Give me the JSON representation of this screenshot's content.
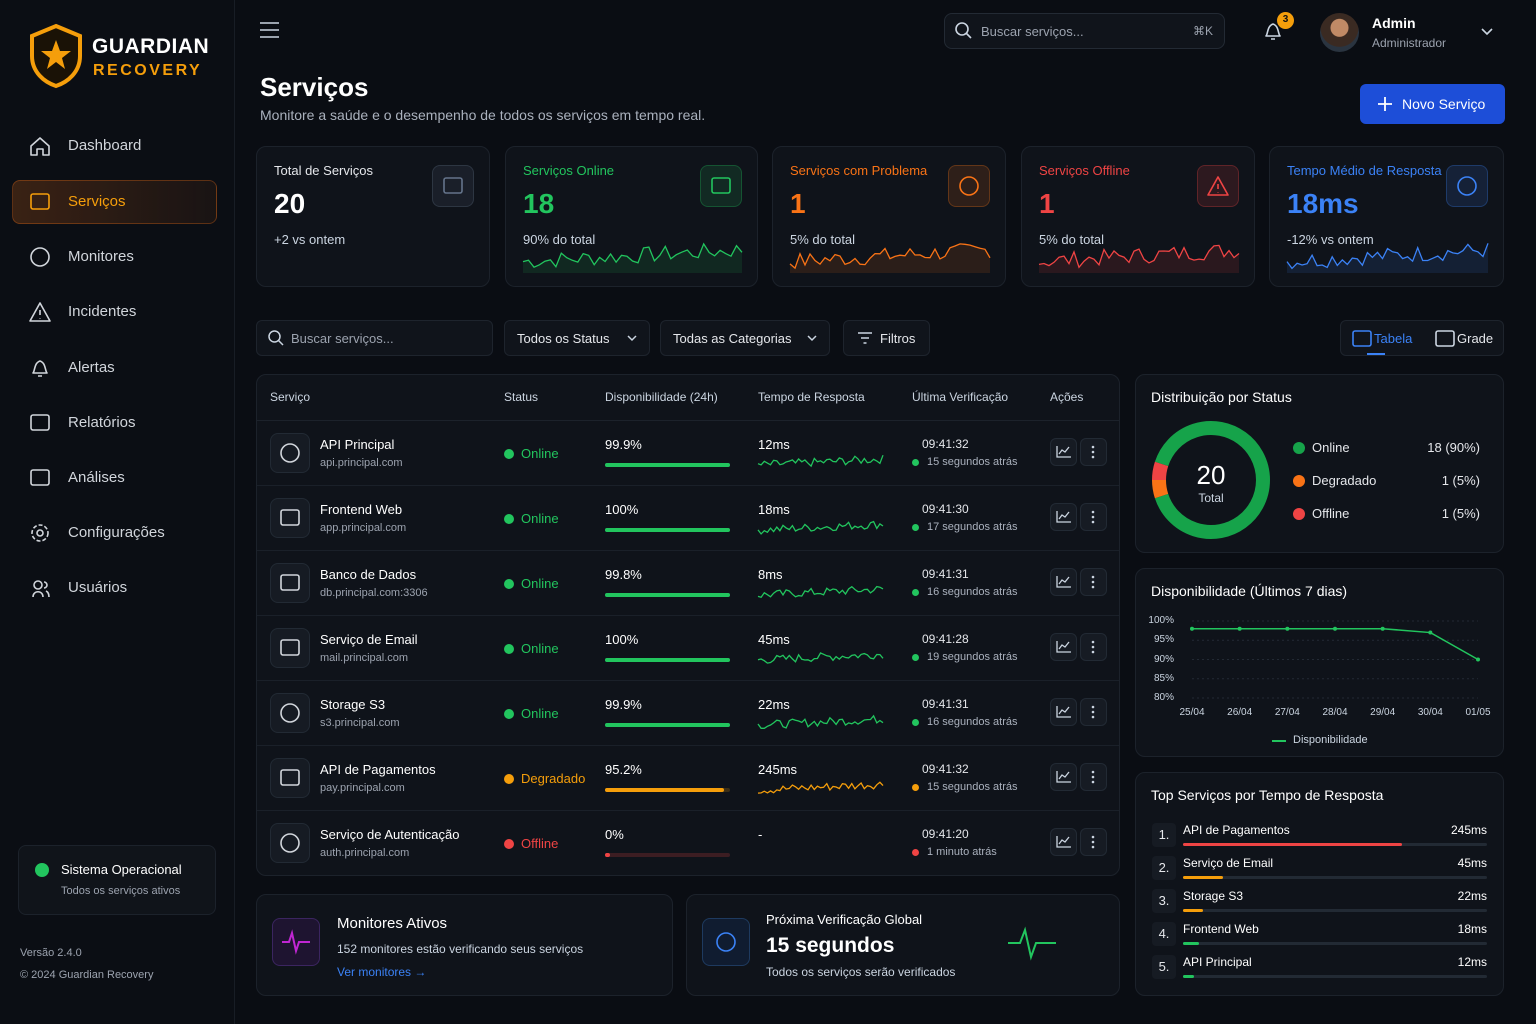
{
  "brand": {
    "line1": "GUARDIAN",
    "line2": "RECOVERY"
  },
  "nav": [
    "Dashboard",
    "Serviços",
    "Monitores",
    "Incidentes",
    "Alertas",
    "Relatórios",
    "Análises",
    "Configurações",
    "Usuários"
  ],
  "system_status": {
    "title": "Sistema Operacional",
    "subtitle": "Todos os serviços ativos"
  },
  "footer": {
    "version": "Versão 2.4.0",
    "copyright": "© 2024 Guardian Recovery"
  },
  "topbar": {
    "search_placeholder": "Buscar serviços...",
    "shortcut": "⌘K",
    "notifications": "3",
    "user_name": "Admin",
    "user_role": "Administrador"
  },
  "header": {
    "title": "Serviços",
    "subtitle": "Monitore a saúde e o desempenho de todos os serviços em tempo real.",
    "button": "Novo Serviço"
  },
  "kpis": [
    {
      "label": "Total de Serviços",
      "value": "20",
      "note": "+2 vs ontem",
      "color": "#ffffff",
      "accent": "#64748b"
    },
    {
      "label": "Serviços Online",
      "value": "18",
      "note": "90% do total",
      "color": "#22c55e",
      "accent": "#22c55e"
    },
    {
      "label": "Serviços com Problema",
      "value": "1",
      "note": "5% do total",
      "color": "#f97316",
      "accent": "#f97316"
    },
    {
      "label": "Serviços Offline",
      "value": "1",
      "note": "5% do total",
      "color": "#ef4444",
      "accent": "#ef4444"
    },
    {
      "label": "Tempo Médio de Resposta",
      "value": "18ms",
      "note": "-12% vs ontem",
      "color": "#3b82f6",
      "accent": "#3b82f6"
    }
  ],
  "filters": {
    "search_placeholder": "Buscar serviços...",
    "status": "Todos os Status",
    "category": "Todas as Categorias",
    "more": "Filtros",
    "view_table": "Tabela",
    "view_grid": "Grade"
  },
  "table": {
    "columns": [
      "Serviço",
      "Status",
      "Disponibilidade (24h)",
      "Tempo de Resposta",
      "Última Verificação",
      "Ações"
    ],
    "rows": [
      {
        "name": "API Principal",
        "host": "api.principal.com",
        "status": "Online",
        "color": "#22c55e",
        "availability": "99.9%",
        "response": "12ms",
        "time": "09:41:32",
        "ago": "15 segundos atrás"
      },
      {
        "name": "Frontend Web",
        "host": "app.principal.com",
        "status": "Online",
        "color": "#22c55e",
        "availability": "100%",
        "response": "18ms",
        "time": "09:41:30",
        "ago": "17 segundos atrás"
      },
      {
        "name": "Banco de Dados",
        "host": "db.principal.com:3306",
        "status": "Online",
        "color": "#22c55e",
        "availability": "99.8%",
        "response": "8ms",
        "time": "09:41:31",
        "ago": "16 segundos atrás"
      },
      {
        "name": "Serviço de Email",
        "host": "mail.principal.com",
        "status": "Online",
        "color": "#22c55e",
        "availability": "100%",
        "response": "45ms",
        "time": "09:41:28",
        "ago": "19 segundos atrás"
      },
      {
        "name": "Storage S3",
        "host": "s3.principal.com",
        "status": "Online",
        "color": "#22c55e",
        "availability": "99.9%",
        "response": "22ms",
        "time": "09:41:31",
        "ago": "16 segundos atrás"
      },
      {
        "name": "API de Pagamentos",
        "host": "pay.principal.com",
        "status": "Degradado",
        "color": "#f59e0b",
        "availability": "95.2%",
        "response": "245ms",
        "time": "09:41:32",
        "ago": "15 segundos atrás"
      },
      {
        "name": "Serviço de Autenticação",
        "host": "auth.principal.com",
        "status": "Offline",
        "color": "#ef4444",
        "availability": "0%",
        "response": "-",
        "time": "09:41:20",
        "ago": "1 minuto atrás"
      }
    ]
  },
  "bottom": {
    "monitors": {
      "title": "Monitores Ativos",
      "text": "152 monitores estão verificando seus serviços",
      "link": "Ver monitores →"
    },
    "next_check": {
      "title": "Próxima Verificação Global",
      "value": "15 segundos",
      "text": "Todos os serviços serão verificados"
    }
  },
  "chart_data": [
    {
      "type": "pie",
      "title": "Distribuição por Status",
      "center_value": "20",
      "center_label": "Total",
      "categories": [
        "Online",
        "Degradado",
        "Offline"
      ],
      "values": [
        18,
        1,
        1
      ],
      "value_labels": [
        "18 (90%)",
        "1 (5%)",
        "1 (5%)"
      ],
      "colors": [
        "#16a34a",
        "#f97316",
        "#ef4444"
      ]
    },
    {
      "type": "line",
      "title": "Disponibilidade (Últimos 7 dias)",
      "categories": [
        "25/04",
        "26/04",
        "27/04",
        "28/04",
        "29/04",
        "30/04",
        "01/05"
      ],
      "series": [
        {
          "name": "Disponibilidade",
          "color": "#22c55e",
          "values": [
            98,
            98,
            98,
            98,
            98,
            97,
            90
          ]
        }
      ],
      "ylim": [
        80,
        100
      ],
      "yticks": [
        {
          "value": 100,
          "label": "100%"
        },
        {
          "value": 95,
          "label": "95%"
        },
        {
          "value": 90,
          "label": "90%"
        },
        {
          "value": 85,
          "label": "85%"
        },
        {
          "value": 80,
          "label": "80%"
        }
      ],
      "grid": true
    },
    {
      "type": "bar",
      "title": "Top Serviços por Tempo de Resposta",
      "ranks": [
        "1.",
        "2.",
        "3.",
        "4.",
        "5."
      ],
      "categories": [
        "API de Pagamentos",
        "Serviço de Email",
        "Storage S3",
        "Frontend Web",
        "API Principal"
      ],
      "values": [
        245,
        45,
        22,
        18,
        12
      ],
      "value_labels": [
        "245ms",
        "45ms",
        "22ms",
        "18ms",
        "12ms"
      ],
      "colors": [
        "#ef4444",
        "#f59e0b",
        "#f59e0b",
        "#22c55e",
        "#22c55e"
      ]
    }
  ]
}
